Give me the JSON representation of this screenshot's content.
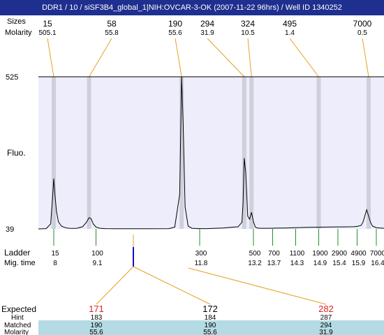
{
  "title": "DDR1 / 10 / siSF3B4_global_1|NIH:OVCAR-3-OK (2007-11-22 96hrs) / Well ID 1340252",
  "labels": {
    "sizes": "Sizes",
    "molarity": "Molarity",
    "fluo": "Fluo.",
    "ladder": "Ladder",
    "mig_time": "Mig. time",
    "expected": "Expected",
    "hint": "Hint",
    "matched": "Matched",
    "molarity_bottom": "Molarity"
  },
  "colors": {
    "title_bg": "#1f2f8f",
    "plot_bg": "#ededfb",
    "band": "#d0d0dc",
    "connector": "#e8a020",
    "ladder_tick": "#2a8a2a",
    "selected_tick": "#1010cc",
    "expected_red": "#e02020",
    "matched_row_bg": "#b4dbe4",
    "trace": "#000000"
  },
  "top_peaks": [
    {
      "size": "15",
      "molarity": "505.1"
    },
    {
      "size": "58",
      "molarity": "55.8"
    },
    {
      "size": "190",
      "molarity": "55.6"
    },
    {
      "size": "294",
      "molarity": "31.9"
    },
    {
      "size": "324",
      "molarity": "10.5"
    },
    {
      "size": "495",
      "molarity": "1.4"
    },
    {
      "size": "7000",
      "molarity": "0.5"
    }
  ],
  "chart_data": {
    "type": "line",
    "title": "",
    "xlabel": "Mig. time",
    "ylabel": "Fluo.",
    "ylim": [
      39,
      525
    ],
    "y_ticks": [
      "525",
      "39"
    ],
    "xlim": [
      7.6,
      16.6
    ],
    "series": [
      {
        "x": [
          7.6,
          7.8,
          7.92,
          7.97,
          8.0,
          8.03,
          8.07,
          8.12,
          8.2,
          8.3,
          8.4,
          8.5,
          8.6,
          8.75,
          8.85,
          8.92,
          8.97,
          9.03,
          9.1,
          9.2,
          9.35,
          9.6,
          10.0,
          10.5,
          11.0,
          11.15,
          11.28,
          11.33,
          11.37,
          11.42,
          11.5,
          11.6,
          11.8,
          12.0,
          12.2,
          12.4,
          12.6,
          12.8,
          12.9,
          12.93,
          12.96,
          13.0,
          13.05,
          13.1,
          13.15,
          13.2,
          13.25,
          13.3,
          13.4,
          13.6,
          13.8,
          14.0,
          14.3,
          14.6,
          14.9,
          15.2,
          15.5,
          15.8,
          15.9,
          16.0,
          16.05,
          16.1,
          16.15,
          16.2,
          16.25,
          16.3,
          16.4,
          16.5,
          16.6
        ],
        "values": [
          39,
          40,
          55,
          140,
          200,
          150,
          95,
          62,
          48,
          43,
          41,
          40.5,
          41,
          46,
          60,
          75,
          72,
          55,
          45,
          41,
          40,
          39.5,
          39.5,
          39.5,
          40,
          45,
          150,
          525,
          380,
          110,
          48,
          41,
          40,
          40,
          41,
          42,
          44,
          46,
          60,
          120,
          265,
          220,
          80,
          70,
          92,
          62,
          45,
          42,
          41,
          41,
          41.5,
          42,
          43,
          44,
          44.5,
          45,
          45.5,
          46,
          47,
          50,
          60,
          80,
          100,
          80,
          60,
          48,
          43,
          42,
          41
        ]
      }
    ],
    "ladder": [
      {
        "size": "15",
        "time": "8"
      },
      {
        "size": "100",
        "time": "9.1"
      },
      {
        "size": "300",
        "time": "11.8"
      },
      {
        "size": "500",
        "time": "13.2"
      },
      {
        "size": "700",
        "time": "13.7"
      },
      {
        "size": "1100",
        "time": "14.3"
      },
      {
        "size": "1900",
        "time": "14.9"
      },
      {
        "size": "2900",
        "time": "15.4"
      },
      {
        "size": "4900",
        "time": "15.9"
      },
      {
        "size": "7000",
        "time": "16.4"
      }
    ]
  },
  "expected_table": [
    {
      "expected": "171",
      "hint": "183",
      "matched": "190",
      "molarity": "55.6"
    },
    {
      "expected": "172",
      "hint": "184",
      "matched": "190",
      "molarity": "55.6"
    },
    {
      "expected": "282",
      "hint": "287",
      "matched": "294",
      "molarity": "31.9"
    }
  ]
}
